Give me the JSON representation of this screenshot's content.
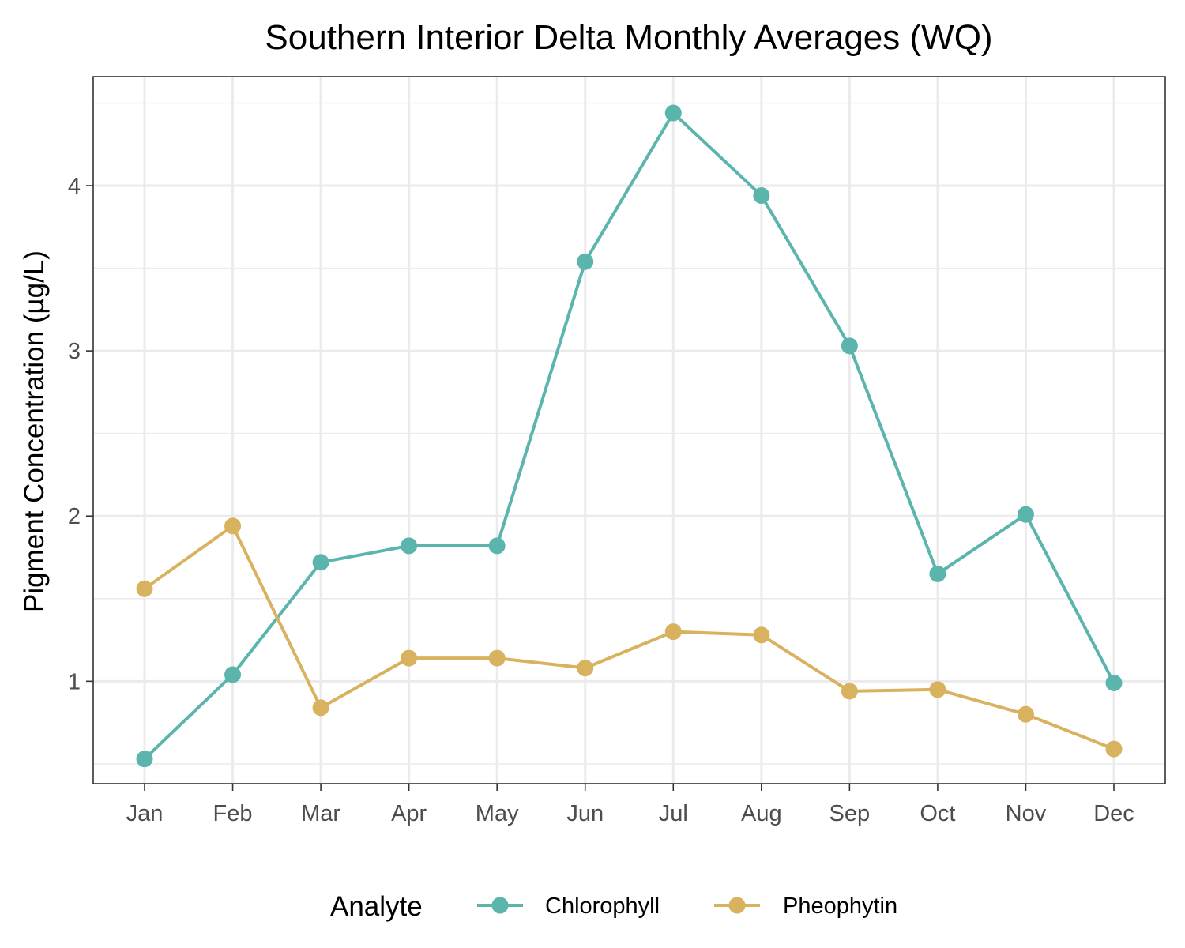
{
  "chart_data": {
    "type": "line",
    "title": "Southern Interior Delta Monthly Averages (WQ)",
    "xlabel": "",
    "ylabel": "Pigment Concentration (µg/L)",
    "categories": [
      "Jan",
      "Feb",
      "Mar",
      "Apr",
      "May",
      "Jun",
      "Jul",
      "Aug",
      "Sep",
      "Oct",
      "Nov",
      "Dec"
    ],
    "ylim": [
      0.38,
      4.66
    ],
    "yticks": [
      1,
      2,
      3,
      4
    ],
    "yticks_minor": [
      0.5,
      1.5,
      2.5,
      3.5,
      4.5
    ],
    "grid": true,
    "legend": {
      "title": "Analyte",
      "position": "bottom"
    },
    "series": [
      {
        "name": "Chlorophyll",
        "color": "#5bb5ad",
        "values": [
          0.53,
          1.04,
          1.72,
          1.82,
          1.82,
          3.54,
          4.44,
          3.94,
          3.03,
          1.65,
          2.01,
          0.99
        ]
      },
      {
        "name": "Pheophytin",
        "color": "#d8b25f",
        "values": [
          1.56,
          1.94,
          0.84,
          1.14,
          1.14,
          1.08,
          1.3,
          1.28,
          0.94,
          0.95,
          0.8,
          0.59
        ]
      }
    ]
  }
}
